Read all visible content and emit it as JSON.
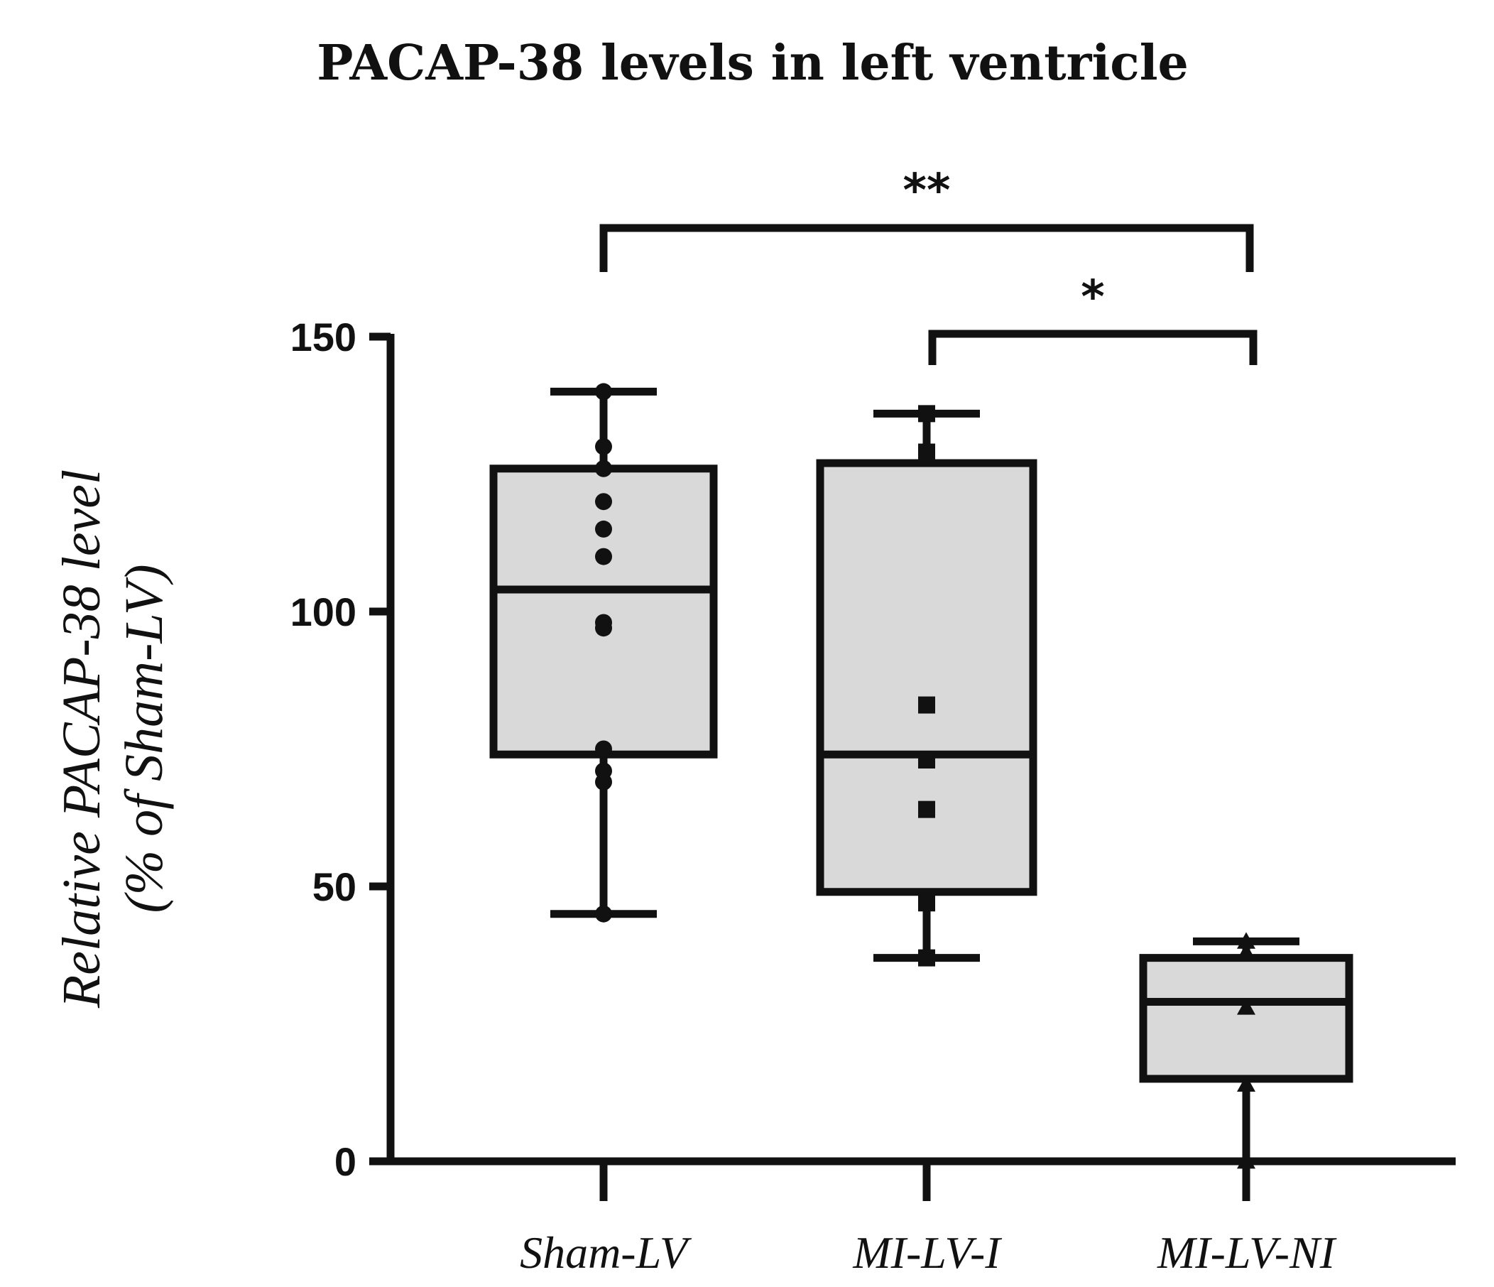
{
  "chart_data": {
    "type": "box",
    "title": "PACAP-38 levels in left ventricle",
    "ylabel_line1": "Relative PACAP-38 level",
    "ylabel_line2": "(% of Sham-LV)",
    "xlabel": "",
    "ylim": [
      0,
      150
    ],
    "yticks": [
      0,
      50,
      100,
      150
    ],
    "ytick_labels": [
      "0",
      "50",
      "100",
      "150"
    ],
    "grid": false,
    "colors": {
      "box_fill": "#d9d9d9",
      "stroke": "#111111",
      "point": "#111111",
      "background": "#ffffff"
    },
    "categories": [
      "Sham-LV",
      "MI-LV-I",
      "MI-LV-NI"
    ],
    "groups": [
      {
        "name": "Sham-LV",
        "marker": "circle",
        "whisker_low": 45,
        "q1": 74,
        "median": 104,
        "q3": 126,
        "whisker_high": 140,
        "points": [
          140,
          130,
          126,
          120,
          115,
          110,
          98,
          97,
          75,
          71,
          69,
          45
        ]
      },
      {
        "name": "MI-LV-I",
        "marker": "square",
        "whisker_low": 37,
        "q1": 49,
        "median": 74,
        "q3": 127,
        "whisker_high": 136,
        "points": [
          136,
          129,
          83,
          73,
          64,
          47,
          37
        ]
      },
      {
        "name": "MI-LV-NI",
        "marker": "triangle",
        "whisker_low": 0,
        "q1": 15,
        "median": 29,
        "q3": 37,
        "whisker_high": 40,
        "points": [
          40,
          38,
          28,
          14,
          0
        ]
      }
    ],
    "significance": [
      {
        "from": "Sham-LV",
        "to": "MI-LV-NI",
        "label": "**",
        "level": 1
      },
      {
        "from": "MI-LV-I",
        "to": "MI-LV-NI",
        "label": "*",
        "level": 0
      }
    ]
  }
}
